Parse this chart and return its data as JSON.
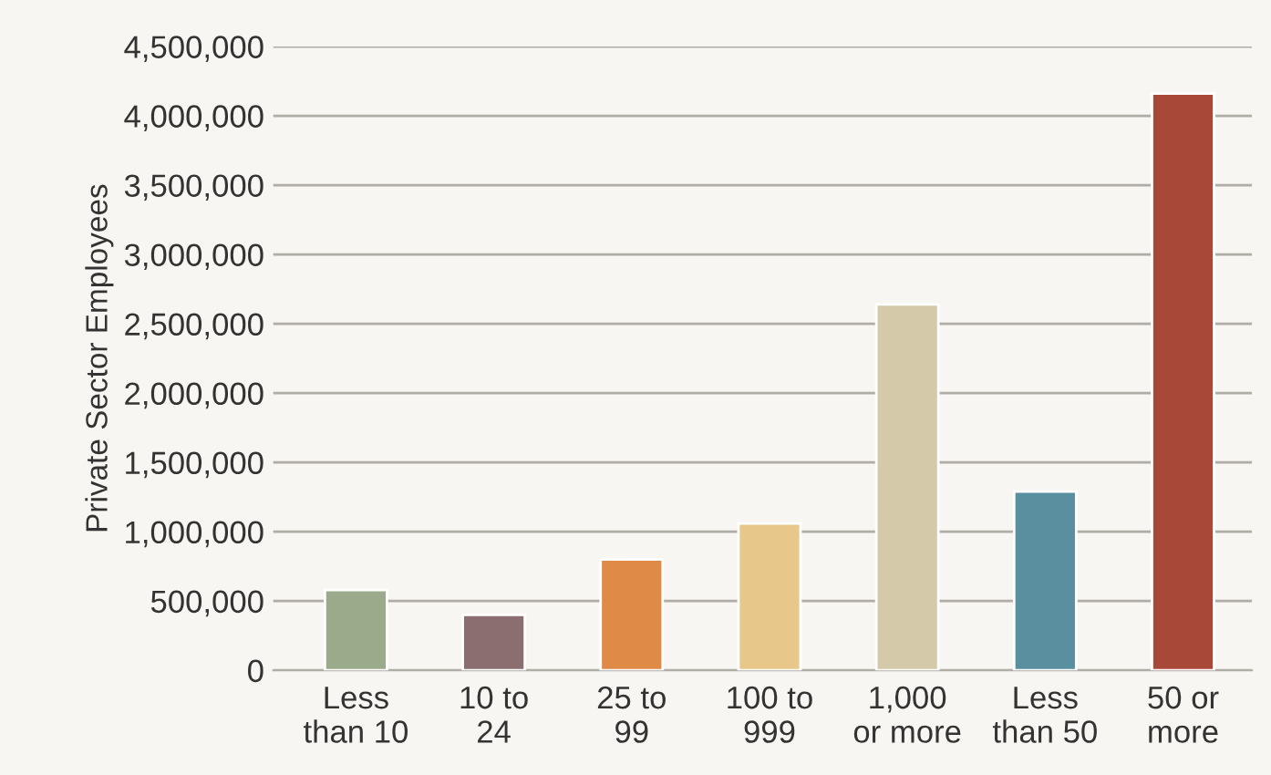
{
  "chart_data": {
    "type": "bar",
    "ylabel": "Private Sector Employees",
    "categories": [
      "Less\nthan 10",
      "10 to\n24",
      "25 to\n99",
      "100 to\n999",
      "1,000\nor more",
      "Less\nthan 50",
      "50 or\nmore"
    ],
    "values": [
      580000,
      400000,
      800000,
      1060000,
      2640000,
      1290000,
      4160000
    ],
    "colors": [
      "#9aaa8a",
      "#8a6e70",
      "#e08a48",
      "#e8c88a",
      "#d4c9a8",
      "#5a8fa0",
      "#a84838"
    ],
    "ylim": [
      0,
      4500000
    ],
    "yticks": [
      {
        "value": 0,
        "label": "0"
      },
      {
        "value": 500000,
        "label": "500,000"
      },
      {
        "value": 1000000,
        "label": "1,000,000"
      },
      {
        "value": 1500000,
        "label": "1,500,000"
      },
      {
        "value": 2000000,
        "label": "2,000,000"
      },
      {
        "value": 2500000,
        "label": "2,500,000"
      },
      {
        "value": 3000000,
        "label": "3,000,000"
      },
      {
        "value": 3500000,
        "label": "3,500,000"
      },
      {
        "value": 4000000,
        "label": "4,000,000"
      },
      {
        "value": 4500000,
        "label": "4,500,000"
      }
    ],
    "grid": "y"
  }
}
